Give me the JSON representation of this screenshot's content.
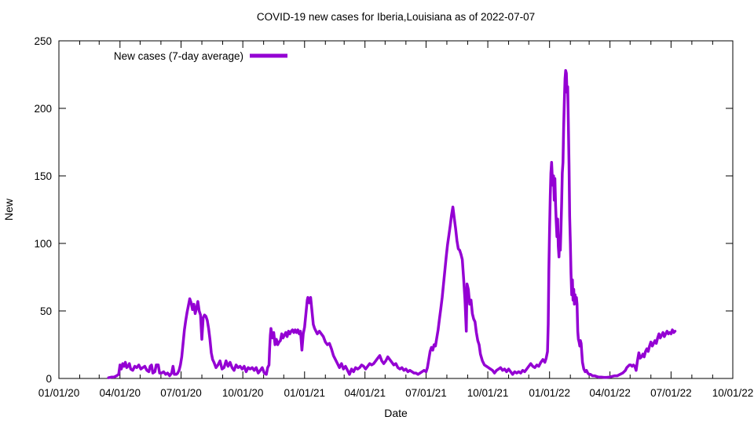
{
  "title": "COVID-19 new cases for Iberia,Louisiana as of 2022-07-07",
  "chart_data": {
    "type": "line",
    "title": "COVID-19 new cases for Iberia,Louisiana as of 2022-07-07",
    "xlabel": "Date",
    "ylabel": "New",
    "legend_label": "New cases (7-day average)",
    "legend_position": "top-left-inside",
    "line_color": "#9400D3",
    "axis_color": "#000000",
    "grid": false,
    "ylim": [
      0,
      250
    ],
    "y_ticks": [
      0,
      50,
      100,
      150,
      200,
      250
    ],
    "x_range_days": [
      0,
      1004
    ],
    "x_epoch": "2020-01-01",
    "x_minor_ticks": "monthly",
    "x_ticks": [
      {
        "label": "01/01/20",
        "day": 0
      },
      {
        "label": "04/01/20",
        "day": 91
      },
      {
        "label": "07/01/20",
        "day": 182
      },
      {
        "label": "10/01/20",
        "day": 274
      },
      {
        "label": "01/01/21",
        "day": 366
      },
      {
        "label": "04/01/21",
        "day": 456
      },
      {
        "label": "07/01/21",
        "day": 547
      },
      {
        "label": "10/01/21",
        "day": 639
      },
      {
        "label": "01/01/22",
        "day": 731
      },
      {
        "label": "04/01/22",
        "day": 821
      },
      {
        "label": "07/01/22",
        "day": 912
      },
      {
        "label": "10/01/22",
        "day": 1004
      }
    ],
    "points": [
      [
        74,
        0.5
      ],
      [
        78,
        1
      ],
      [
        82,
        1
      ],
      [
        86,
        2
      ],
      [
        89,
        3
      ],
      [
        91,
        10
      ],
      [
        93,
        7
      ],
      [
        95,
        11
      ],
      [
        97,
        9
      ],
      [
        99,
        12
      ],
      [
        101,
        8
      ],
      [
        103,
        9
      ],
      [
        105,
        11
      ],
      [
        107,
        7
      ],
      [
        110,
        6
      ],
      [
        113,
        9
      ],
      [
        116,
        8
      ],
      [
        119,
        10
      ],
      [
        122,
        7
      ],
      [
        125,
        8
      ],
      [
        128,
        9
      ],
      [
        131,
        6
      ],
      [
        134,
        5
      ],
      [
        136,
        9
      ],
      [
        138,
        10
      ],
      [
        140,
        4
      ],
      [
        143,
        5
      ],
      [
        145,
        10
      ],
      [
        148,
        10
      ],
      [
        150,
        4
      ],
      [
        153,
        4
      ],
      [
        156,
        5
      ],
      [
        159,
        3
      ],
      [
        162,
        4
      ],
      [
        165,
        2
      ],
      [
        168,
        4
      ],
      [
        170,
        9
      ],
      [
        172,
        3
      ],
      [
        175,
        3
      ],
      [
        177,
        4
      ],
      [
        179,
        6
      ],
      [
        181,
        10
      ],
      [
        183,
        16
      ],
      [
        185,
        26
      ],
      [
        187,
        36
      ],
      [
        189,
        43
      ],
      [
        191,
        49
      ],
      [
        193,
        54
      ],
      [
        195,
        59
      ],
      [
        197,
        56
      ],
      [
        199,
        51
      ],
      [
        201,
        55
      ],
      [
        203,
        48
      ],
      [
        205,
        52
      ],
      [
        207,
        57
      ],
      [
        209,
        50
      ],
      [
        211,
        47
      ],
      [
        213,
        29
      ],
      [
        215,
        45
      ],
      [
        217,
        47
      ],
      [
        219,
        46
      ],
      [
        221,
        43
      ],
      [
        223,
        37
      ],
      [
        225,
        29
      ],
      [
        227,
        19
      ],
      [
        229,
        14
      ],
      [
        231,
        12
      ],
      [
        234,
        8
      ],
      [
        237,
        10
      ],
      [
        240,
        13
      ],
      [
        243,
        7
      ],
      [
        246,
        8
      ],
      [
        249,
        13
      ],
      [
        252,
        9
      ],
      [
        255,
        12
      ],
      [
        258,
        8
      ],
      [
        261,
        6
      ],
      [
        264,
        10
      ],
      [
        267,
        8
      ],
      [
        270,
        9
      ],
      [
        273,
        7
      ],
      [
        276,
        9
      ],
      [
        279,
        5
      ],
      [
        282,
        8
      ],
      [
        285,
        7
      ],
      [
        288,
        8
      ],
      [
        291,
        6
      ],
      [
        294,
        8
      ],
      [
        297,
        4
      ],
      [
        300,
        6
      ],
      [
        303,
        8
      ],
      [
        306,
        4
      ],
      [
        309,
        3
      ],
      [
        311,
        8
      ],
      [
        313,
        10
      ],
      [
        314,
        22
      ],
      [
        315,
        32
      ],
      [
        316,
        37
      ],
      [
        318,
        30
      ],
      [
        320,
        34
      ],
      [
        322,
        25
      ],
      [
        324,
        29
      ],
      [
        326,
        25
      ],
      [
        328,
        27
      ],
      [
        330,
        28
      ],
      [
        332,
        33
      ],
      [
        334,
        30
      ],
      [
        336,
        32
      ],
      [
        338,
        34
      ],
      [
        340,
        31
      ],
      [
        342,
        35
      ],
      [
        344,
        33
      ],
      [
        346,
        35
      ],
      [
        348,
        36
      ],
      [
        350,
        34
      ],
      [
        352,
        36
      ],
      [
        354,
        34
      ],
      [
        356,
        36
      ],
      [
        358,
        33
      ],
      [
        360,
        35
      ],
      [
        362,
        21
      ],
      [
        364,
        33
      ],
      [
        366,
        38
      ],
      [
        368,
        48
      ],
      [
        370,
        58
      ],
      [
        371,
        60
      ],
      [
        373,
        56
      ],
      [
        375,
        60
      ],
      [
        377,
        50
      ],
      [
        379,
        40
      ],
      [
        381,
        37
      ],
      [
        383,
        35
      ],
      [
        385,
        33
      ],
      [
        388,
        35
      ],
      [
        391,
        33
      ],
      [
        394,
        31
      ],
      [
        397,
        27
      ],
      [
        400,
        25
      ],
      [
        403,
        26
      ],
      [
        406,
        22
      ],
      [
        409,
        17
      ],
      [
        412,
        14
      ],
      [
        415,
        11
      ],
      [
        418,
        8
      ],
      [
        421,
        11
      ],
      [
        424,
        7
      ],
      [
        427,
        9
      ],
      [
        430,
        6
      ],
      [
        433,
        3
      ],
      [
        436,
        7
      ],
      [
        439,
        5
      ],
      [
        442,
        8
      ],
      [
        445,
        7
      ],
      [
        448,
        8
      ],
      [
        451,
        10
      ],
      [
        454,
        9
      ],
      [
        457,
        7
      ],
      [
        460,
        9
      ],
      [
        463,
        11
      ],
      [
        466,
        10
      ],
      [
        469,
        11
      ],
      [
        472,
        13
      ],
      [
        475,
        15
      ],
      [
        478,
        17
      ],
      [
        481,
        13
      ],
      [
        484,
        11
      ],
      [
        487,
        13
      ],
      [
        490,
        16
      ],
      [
        493,
        14
      ],
      [
        496,
        12
      ],
      [
        499,
        10
      ],
      [
        502,
        11
      ],
      [
        505,
        8
      ],
      [
        508,
        7
      ],
      [
        511,
        8
      ],
      [
        514,
        6
      ],
      [
        517,
        7
      ],
      [
        520,
        5
      ],
      [
        523,
        6
      ],
      [
        526,
        5
      ],
      [
        529,
        4
      ],
      [
        532,
        4
      ],
      [
        535,
        3
      ],
      [
        538,
        4
      ],
      [
        541,
        5
      ],
      [
        544,
        6
      ],
      [
        547,
        5
      ],
      [
        549,
        8
      ],
      [
        551,
        14
      ],
      [
        553,
        20
      ],
      [
        555,
        23
      ],
      [
        557,
        21
      ],
      [
        559,
        25
      ],
      [
        561,
        24
      ],
      [
        563,
        30
      ],
      [
        565,
        36
      ],
      [
        567,
        44
      ],
      [
        569,
        52
      ],
      [
        571,
        60
      ],
      [
        573,
        70
      ],
      [
        575,
        80
      ],
      [
        577,
        90
      ],
      [
        579,
        99
      ],
      [
        581,
        106
      ],
      [
        583,
        113
      ],
      [
        585,
        121
      ],
      [
        587,
        127
      ],
      [
        589,
        119
      ],
      [
        591,
        111
      ],
      [
        593,
        102
      ],
      [
        595,
        96
      ],
      [
        597,
        95
      ],
      [
        599,
        92
      ],
      [
        601,
        88
      ],
      [
        603,
        74
      ],
      [
        605,
        58
      ],
      [
        607,
        35
      ],
      [
        608,
        70
      ],
      [
        610,
        66
      ],
      [
        612,
        55
      ],
      [
        614,
        58
      ],
      [
        616,
        48
      ],
      [
        618,
        44
      ],
      [
        620,
        42
      ],
      [
        622,
        34
      ],
      [
        624,
        28
      ],
      [
        626,
        25
      ],
      [
        628,
        18
      ],
      [
        631,
        13
      ],
      [
        634,
        10
      ],
      [
        637,
        9
      ],
      [
        640,
        8
      ],
      [
        643,
        7
      ],
      [
        646,
        6
      ],
      [
        649,
        4
      ],
      [
        652,
        6
      ],
      [
        655,
        7
      ],
      [
        658,
        8
      ],
      [
        661,
        6
      ],
      [
        664,
        7
      ],
      [
        667,
        5
      ],
      [
        670,
        7
      ],
      [
        673,
        5
      ],
      [
        676,
        3
      ],
      [
        679,
        5
      ],
      [
        682,
        4
      ],
      [
        685,
        5
      ],
      [
        688,
        4
      ],
      [
        691,
        6
      ],
      [
        694,
        5
      ],
      [
        697,
        7
      ],
      [
        700,
        9
      ],
      [
        703,
        11
      ],
      [
        706,
        9
      ],
      [
        709,
        8
      ],
      [
        712,
        10
      ],
      [
        715,
        9
      ],
      [
        718,
        12
      ],
      [
        721,
        14
      ],
      [
        724,
        12
      ],
      [
        726,
        15
      ],
      [
        728,
        20
      ],
      [
        729,
        40
      ],
      [
        730,
        80
      ],
      [
        731,
        110
      ],
      [
        732,
        135
      ],
      [
        733,
        152
      ],
      [
        734,
        160
      ],
      [
        735,
        150
      ],
      [
        736,
        143
      ],
      [
        737,
        150
      ],
      [
        738,
        132
      ],
      [
        739,
        148
      ],
      [
        740,
        128
      ],
      [
        741,
        116
      ],
      [
        742,
        105
      ],
      [
        743,
        118
      ],
      [
        744,
        98
      ],
      [
        745,
        90
      ],
      [
        746,
        102
      ],
      [
        747,
        95
      ],
      [
        748,
        110
      ],
      [
        749,
        130
      ],
      [
        750,
        152
      ],
      [
        751,
        160
      ],
      [
        752,
        185
      ],
      [
        753,
        205
      ],
      [
        754,
        222
      ],
      [
        755,
        228
      ],
      [
        756,
        226
      ],
      [
        757,
        212
      ],
      [
        758,
        216
      ],
      [
        759,
        190
      ],
      [
        760,
        158
      ],
      [
        761,
        120
      ],
      [
        762,
        100
      ],
      [
        763,
        78
      ],
      [
        764,
        62
      ],
      [
        765,
        73
      ],
      [
        766,
        58
      ],
      [
        767,
        66
      ],
      [
        768,
        55
      ],
      [
        769,
        62
      ],
      [
        770,
        56
      ],
      [
        771,
        60
      ],
      [
        772,
        55
      ],
      [
        773,
        35
      ],
      [
        774,
        29
      ],
      [
        775,
        27
      ],
      [
        776,
        24
      ],
      [
        777,
        28
      ],
      [
        778,
        26
      ],
      [
        780,
        12
      ],
      [
        782,
        7
      ],
      [
        784,
        5
      ],
      [
        786,
        6
      ],
      [
        788,
        4
      ],
      [
        790,
        3
      ],
      [
        792,
        3
      ],
      [
        795,
        2
      ],
      [
        798,
        2
      ],
      [
        801,
        1.5
      ],
      [
        804,
        1
      ],
      [
        808,
        1
      ],
      [
        812,
        0.8
      ],
      [
        816,
        0.8
      ],
      [
        820,
        1
      ],
      [
        824,
        1.5
      ],
      [
        828,
        2
      ],
      [
        832,
        2
      ],
      [
        836,
        3
      ],
      [
        840,
        4
      ],
      [
        844,
        6
      ],
      [
        846,
        8
      ],
      [
        848,
        9
      ],
      [
        850,
        10
      ],
      [
        852,
        10
      ],
      [
        854,
        9
      ],
      [
        856,
        10
      ],
      [
        858,
        9
      ],
      [
        860,
        6
      ],
      [
        862,
        13
      ],
      [
        864,
        19
      ],
      [
        866,
        15
      ],
      [
        868,
        16
      ],
      [
        870,
        18
      ],
      [
        872,
        16
      ],
      [
        874,
        20
      ],
      [
        876,
        22
      ],
      [
        878,
        20
      ],
      [
        880,
        24
      ],
      [
        882,
        27
      ],
      [
        884,
        24
      ],
      [
        886,
        26
      ],
      [
        888,
        28
      ],
      [
        890,
        26
      ],
      [
        892,
        30
      ],
      [
        894,
        33
      ],
      [
        896,
        30
      ],
      [
        898,
        32
      ],
      [
        900,
        34
      ],
      [
        902,
        31
      ],
      [
        904,
        33
      ],
      [
        906,
        35
      ],
      [
        908,
        33
      ],
      [
        910,
        34
      ],
      [
        912,
        33
      ],
      [
        914,
        36
      ],
      [
        916,
        34
      ],
      [
        918,
        35
      ]
    ]
  }
}
